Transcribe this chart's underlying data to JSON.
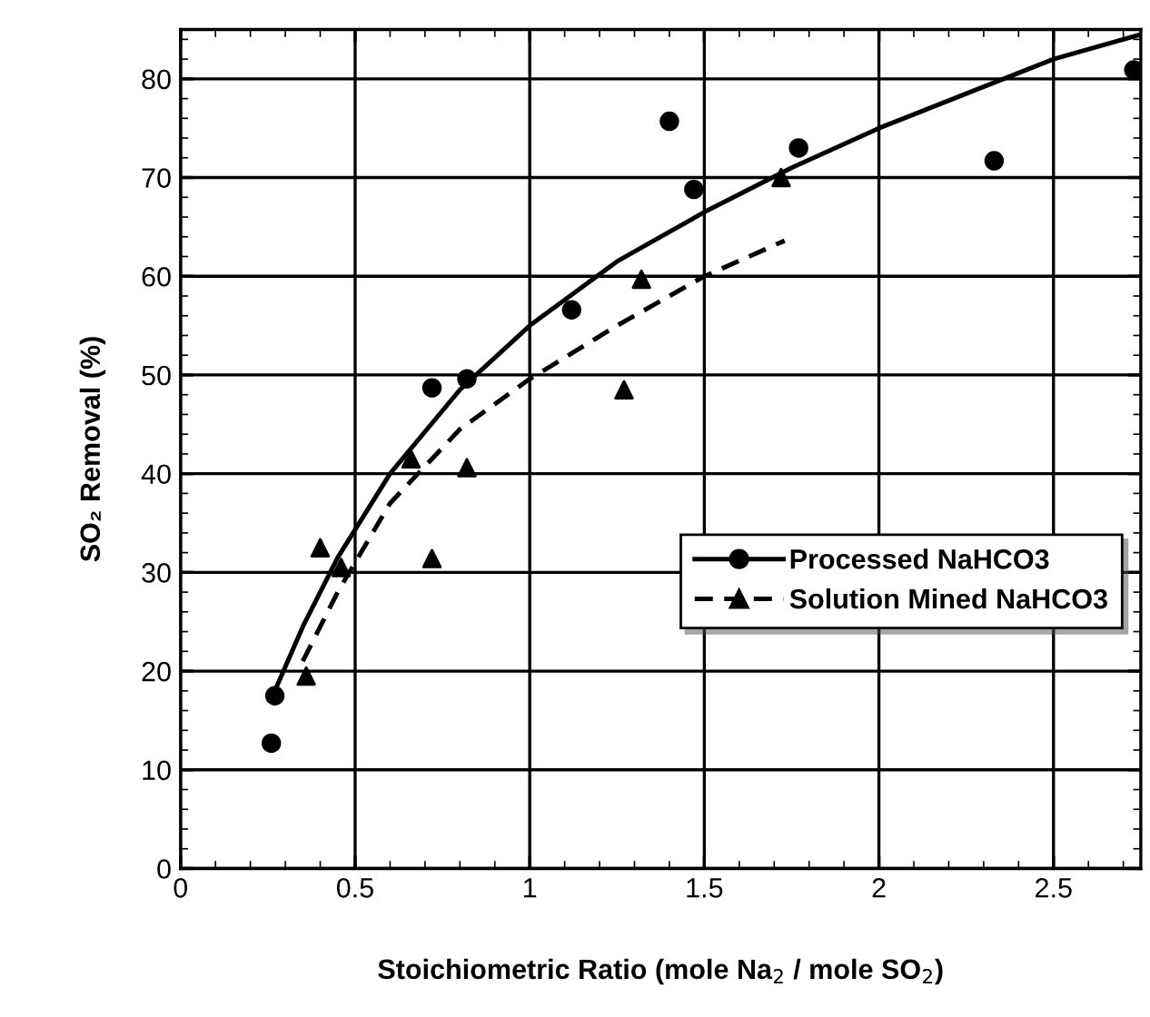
{
  "chart_data": {
    "type": "scatter",
    "xlabel": "Stoichiometric Ratio (mole Na$_{2}$ / mole SO$_{2}$)",
    "ylabel": "SO₂ Removal (%)",
    "xlim": [
      0,
      2.75
    ],
    "ylim": [
      0,
      85
    ],
    "xticks": [
      0,
      0.5,
      1,
      1.5,
      2,
      2.5
    ],
    "yticks": [
      0,
      10,
      20,
      30,
      40,
      50,
      60,
      70,
      80
    ],
    "grid": true,
    "legend": "bottom right",
    "series": [
      {
        "name": "Processed NaHCO3",
        "marker": "circle",
        "color": "#000000",
        "x": [
          0.27,
          0.26,
          0.72,
          0.82,
          1.12,
          1.4,
          1.47,
          1.77,
          2.33,
          2.73
        ],
        "values": [
          17.5,
          12.7,
          48.7,
          49.6,
          56.6,
          75.7,
          68.8,
          73,
          71.7,
          80.9
        ]
      },
      {
        "type": "line",
        "line_style": "solid",
        "color": "#000000",
        "x": [
          0.27,
          0.35,
          0.45,
          0.6,
          0.8,
          1.0,
          1.25,
          1.5,
          1.75,
          2.0,
          2.25,
          2.5,
          2.75
        ],
        "values": [
          18,
          24.5,
          31.5,
          40,
          48.5,
          55,
          61.5,
          66.5,
          71,
          75,
          78.5,
          82,
          84.5
        ]
      },
      {
        "name": "Solution Mined NaHCO3",
        "marker": "triangle",
        "color": "#000000",
        "x": [
          0.36,
          0.4,
          0.46,
          0.66,
          0.72,
          0.82,
          1.27,
          1.32,
          1.72
        ],
        "values": [
          19.5,
          32.5,
          30.5,
          41.5,
          31.4,
          40.6,
          48.5,
          59.7,
          70
        ]
      },
      {
        "type": "line",
        "line_style": "dashed",
        "color": "#000000",
        "x": [
          0.35,
          0.45,
          0.6,
          0.8,
          1.0,
          1.25,
          1.5,
          1.73
        ],
        "values": [
          21,
          28,
          37,
          44.5,
          49.6,
          55,
          60,
          63.6
        ]
      }
    ]
  }
}
